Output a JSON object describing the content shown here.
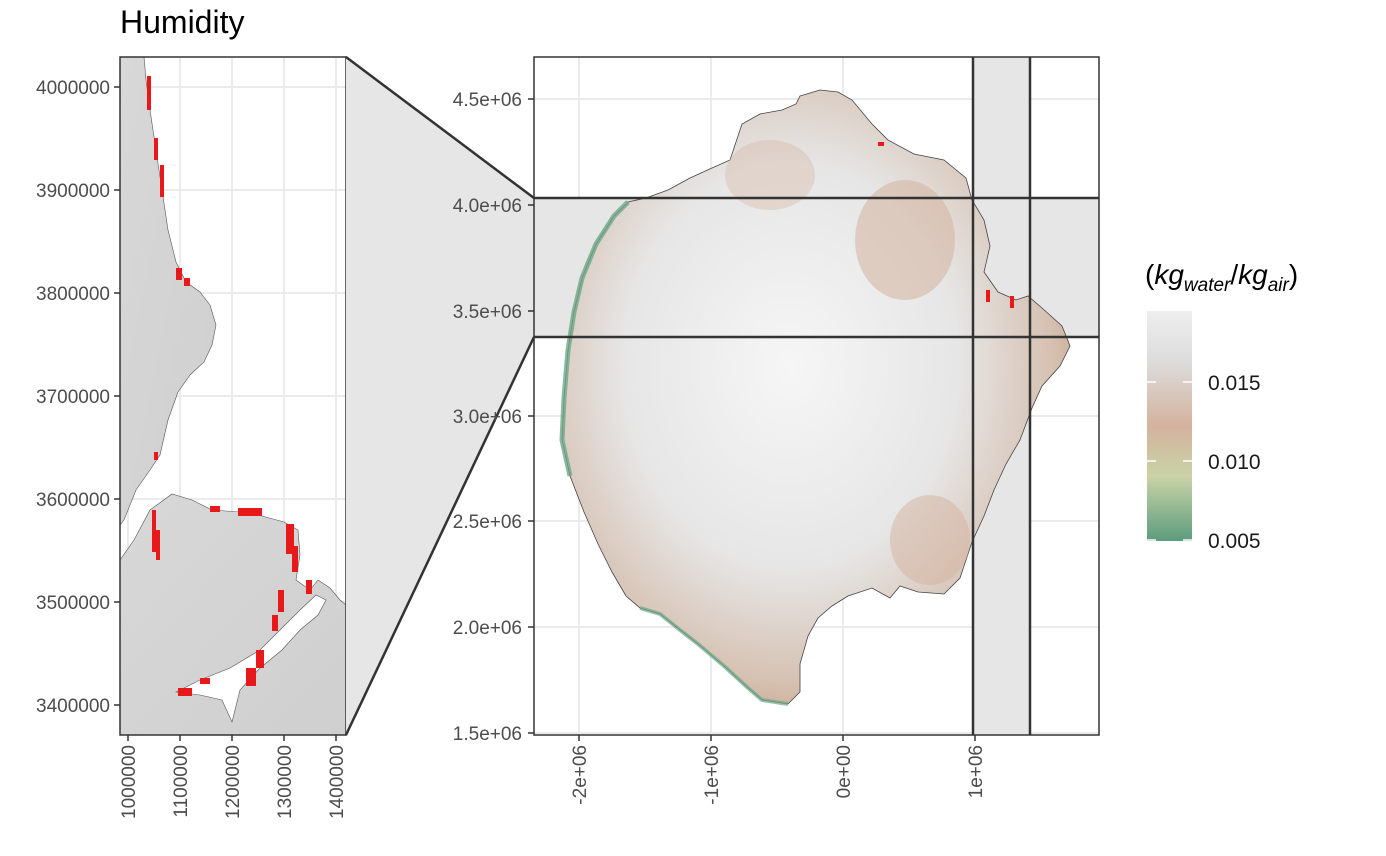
{
  "title": "Humidity",
  "inset_panel": {
    "x_ticks": [
      "1000000",
      "1100000",
      "1200000",
      "1300000",
      "1400000"
    ],
    "y_ticks": [
      "4000000",
      "3900000",
      "3800000",
      "3700000",
      "3600000",
      "3500000",
      "3400000"
    ]
  },
  "main_panel": {
    "x_ticks": [
      "-2e+06",
      "-1e+06",
      "0e+00",
      "1e+06"
    ],
    "y_ticks": [
      "4.5e+06",
      "4.0e+06",
      "3.5e+06",
      "3.0e+06",
      "2.5e+06",
      "2.0e+06",
      "1.5e+06"
    ]
  },
  "legend": {
    "title_base1": "kg",
    "title_sub1": "water",
    "title_base2": "kg",
    "title_sub2": "air",
    "labels": [
      "0.015",
      "0.010",
      "0.005"
    ],
    "colors": {
      "high": "#eeeeee",
      "mid": "#d4b29e",
      "low_mid": "#c9d3a6",
      "low": "#5c9c7e"
    }
  },
  "highlight_color": "#e8191b"
}
